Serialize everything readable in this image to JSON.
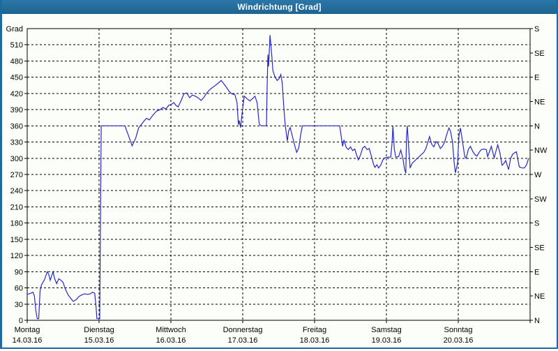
{
  "window": {
    "title": "Windrichtung [Grad]"
  },
  "colors": {
    "frame": "#1e6a9e",
    "title_text": "#ffffff",
    "plot_background": "#fcfef9",
    "line": "#2626cc",
    "grid": "#000000",
    "text": "#000000"
  },
  "chart_data": {
    "type": "line",
    "title": "Windrichtung [Grad]",
    "ylabel": "Grad",
    "grid": true,
    "legend_position": "none",
    "y_axis": {
      "min": 0,
      "max": 540,
      "tick_step": 30,
      "tick_labels": [
        "0",
        "30",
        "60",
        "90",
        "120",
        "150",
        "180",
        "210",
        "240",
        "270",
        "300",
        "330",
        "360",
        "390",
        "420",
        "450",
        "480",
        "510"
      ]
    },
    "y_axis_right": {
      "tick_step_deg": 45,
      "labels_bottom_to_top": [
        "N",
        "NE",
        "E",
        "SE",
        "S",
        "SW",
        "W",
        "NW",
        "N",
        "NE",
        "E",
        "SE",
        "S"
      ]
    },
    "x_axis": {
      "range_days": 7,
      "days": [
        {
          "name": "Montag",
          "date": "14.03.16"
        },
        {
          "name": "Dienstag",
          "date": "15.03.16"
        },
        {
          "name": "Mittwoch",
          "date": "16.03.16"
        },
        {
          "name": "Donnerstag",
          "date": "17.03.16"
        },
        {
          "name": "Freitag",
          "date": "18.03.16"
        },
        {
          "name": "Samstag",
          "date": "19.03.16"
        },
        {
          "name": "Sonntag",
          "date": "20.03.16"
        }
      ]
    },
    "series": [
      {
        "name": "Windrichtung",
        "unit": "Grad",
        "color": "#2626cc",
        "points": [
          [
            0,
            48
          ],
          [
            0.05,
            50
          ],
          [
            0.08,
            52
          ],
          [
            0.1,
            45
          ],
          [
            0.12,
            18
          ],
          [
            0.14,
            3
          ],
          [
            0.16,
            3
          ],
          [
            0.18,
            55
          ],
          [
            0.2,
            66
          ],
          [
            0.24,
            75
          ],
          [
            0.28,
            90
          ],
          [
            0.3,
            85
          ],
          [
            0.32,
            74
          ],
          [
            0.34,
            82
          ],
          [
            0.36,
            90
          ],
          [
            0.38,
            78
          ],
          [
            0.41,
            68
          ],
          [
            0.44,
            77
          ],
          [
            0.47,
            74
          ],
          [
            0.5,
            70
          ],
          [
            0.53,
            58
          ],
          [
            0.57,
            47
          ],
          [
            0.61,
            40
          ],
          [
            0.64,
            35
          ],
          [
            0.68,
            38
          ],
          [
            0.72,
            44
          ],
          [
            0.76,
            47
          ],
          [
            0.8,
            49
          ],
          [
            0.84,
            48
          ],
          [
            0.88,
            49
          ],
          [
            0.91,
            52
          ],
          [
            0.94,
            50
          ],
          [
            0.96,
            22
          ],
          [
            0.97,
            3
          ],
          [
            1.01,
            3
          ],
          [
            1.03,
            360
          ],
          [
            1.36,
            360
          ],
          [
            1.41,
            342
          ],
          [
            1.46,
            323
          ],
          [
            1.51,
            337
          ],
          [
            1.55,
            356
          ],
          [
            1.58,
            361
          ],
          [
            1.62,
            368
          ],
          [
            1.66,
            374
          ],
          [
            1.7,
            371
          ],
          [
            1.75,
            380
          ],
          [
            1.8,
            387
          ],
          [
            1.85,
            390
          ],
          [
            1.89,
            394
          ],
          [
            1.93,
            391
          ],
          [
            1.97,
            398
          ],
          [
            2.01,
            400
          ],
          [
            2.04,
            403
          ],
          [
            2.07,
            398
          ],
          [
            2.1,
            395
          ],
          [
            2.14,
            406
          ],
          [
            2.18,
            419
          ],
          [
            2.22,
            421
          ],
          [
            2.26,
            412
          ],
          [
            2.3,
            417
          ],
          [
            2.34,
            415
          ],
          [
            2.38,
            412
          ],
          [
            2.42,
            407
          ],
          [
            2.46,
            413
          ],
          [
            2.5,
            421
          ],
          [
            2.55,
            428
          ],
          [
            2.6,
            433
          ],
          [
            2.65,
            438
          ],
          [
            2.7,
            444
          ],
          [
            2.73,
            439
          ],
          [
            2.77,
            432
          ],
          [
            2.81,
            424
          ],
          [
            2.85,
            419
          ],
          [
            2.89,
            418
          ],
          [
            2.92,
            403
          ],
          [
            2.94,
            362
          ],
          [
            2.95,
            370
          ],
          [
            2.97,
            357
          ],
          [
            2.99,
            382
          ],
          [
            3.02,
            415
          ],
          [
            3.06,
            410
          ],
          [
            3.1,
            406
          ],
          [
            3.14,
            411
          ],
          [
            3.17,
            415
          ],
          [
            3.2,
            403
          ],
          [
            3.23,
            363
          ],
          [
            3.26,
            360
          ],
          [
            3.33,
            360
          ],
          [
            3.34,
            432
          ],
          [
            3.35,
            492
          ],
          [
            3.36,
            470
          ],
          [
            3.38,
            528
          ],
          [
            3.4,
            498
          ],
          [
            3.42,
            462
          ],
          [
            3.45,
            450
          ],
          [
            3.48,
            444
          ],
          [
            3.51,
            448
          ],
          [
            3.53,
            455
          ],
          [
            3.55,
            440
          ],
          [
            3.57,
            398
          ],
          [
            3.59,
            363
          ],
          [
            3.62,
            332
          ],
          [
            3.64,
            351
          ],
          [
            3.66,
            357
          ],
          [
            3.69,
            341
          ],
          [
            3.72,
            325
          ],
          [
            3.75,
            311
          ],
          [
            3.78,
            319
          ],
          [
            3.81,
            346
          ],
          [
            3.83,
            360
          ],
          [
            4,
            360
          ],
          [
            4.35,
            360
          ],
          [
            4.37,
            341
          ],
          [
            4.39,
            322
          ],
          [
            4.41,
            334
          ],
          [
            4.44,
            320
          ],
          [
            4.47,
            316
          ],
          [
            4.5,
            321
          ],
          [
            4.53,
            314
          ],
          [
            4.56,
            317
          ],
          [
            4.58,
            308
          ],
          [
            4.61,
            297
          ],
          [
            4.64,
            306
          ],
          [
            4.67,
            319
          ],
          [
            4.7,
            322
          ],
          [
            4.73,
            316
          ],
          [
            4.76,
            318
          ],
          [
            4.79,
            304
          ],
          [
            4.82,
            289
          ],
          [
            4.84,
            283
          ],
          [
            4.87,
            288
          ],
          [
            4.89,
            282
          ],
          [
            4.92,
            287
          ],
          [
            4.95,
            297
          ],
          [
            4.98,
            301
          ],
          [
            5.02,
            302
          ],
          [
            5.06,
            302
          ],
          [
            5.08,
            330
          ],
          [
            5.09,
            360
          ],
          [
            5.11,
            317
          ],
          [
            5.13,
            302
          ],
          [
            5.17,
            303
          ],
          [
            5.2,
            315
          ],
          [
            5.23,
            299
          ],
          [
            5.25,
            281
          ],
          [
            5.27,
            272
          ],
          [
            5.28,
            340
          ],
          [
            5.29,
            360
          ],
          [
            5.31,
            320
          ],
          [
            5.33,
            282
          ],
          [
            5.36,
            291
          ],
          [
            5.4,
            296
          ],
          [
            5.44,
            301
          ],
          [
            5.48,
            306
          ],
          [
            5.52,
            311
          ],
          [
            5.55,
            318
          ],
          [
            5.58,
            331
          ],
          [
            5.6,
            340
          ],
          [
            5.63,
            326
          ],
          [
            5.66,
            321
          ],
          [
            5.69,
            331
          ],
          [
            5.72,
            327
          ],
          [
            5.75,
            318
          ],
          [
            5.78,
            322
          ],
          [
            5.81,
            330
          ],
          [
            5.84,
            344
          ],
          [
            5.87,
            356
          ],
          [
            5.89,
            351
          ],
          [
            5.92,
            330
          ],
          [
            5.94,
            296
          ],
          [
            5.96,
            273
          ],
          [
            5.99,
            291
          ],
          [
            6.01,
            342
          ],
          [
            6.03,
            356
          ],
          [
            6.06,
            330
          ],
          [
            6.09,
            303
          ],
          [
            6.11,
            300
          ],
          [
            6.14,
            316
          ],
          [
            6.17,
            322
          ],
          [
            6.2,
            313
          ],
          [
            6.23,
            307
          ],
          [
            6.26,
            304
          ],
          [
            6.29,
            311
          ],
          [
            6.32,
            316
          ],
          [
            6.36,
            317
          ],
          [
            6.39,
            316
          ],
          [
            6.41,
            303
          ],
          [
            6.46,
            322
          ],
          [
            6.5,
            301
          ],
          [
            6.55,
            325
          ],
          [
            6.58,
            310
          ],
          [
            6.61,
            287
          ],
          [
            6.64,
            291
          ],
          [
            6.66,
            296
          ],
          [
            6.7,
            279
          ],
          [
            6.73,
            300
          ],
          [
            6.76,
            308
          ],
          [
            6.81,
            312
          ],
          [
            6.85,
            284
          ],
          [
            6.89,
            282
          ],
          [
            6.92,
            282
          ],
          [
            6.95,
            288
          ],
          [
            6.98,
            300
          ]
        ]
      }
    ]
  }
}
